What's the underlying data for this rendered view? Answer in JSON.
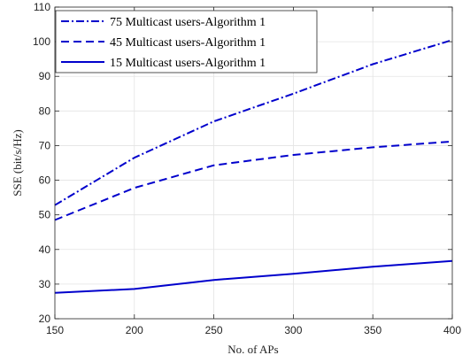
{
  "chart_data": {
    "type": "line",
    "xlabel": "No. of APs",
    "ylabel": "SSE (bit/s/Hz)",
    "x": [
      150,
      200,
      250,
      300,
      350,
      400
    ],
    "xlim": [
      150,
      400
    ],
    "ylim": [
      20,
      110
    ],
    "xticks": [
      150,
      200,
      250,
      300,
      350,
      400
    ],
    "yticks": [
      20,
      30,
      40,
      50,
      60,
      70,
      80,
      90,
      100,
      110
    ],
    "grid": true,
    "legend_position": "top-left",
    "series": [
      {
        "name": "75 Multicast users-Algorithm 1",
        "line_style": "dash-dot",
        "color": "#0000cc",
        "values": [
          52.8,
          66.5,
          77.0,
          85.0,
          93.5,
          100.5
        ]
      },
      {
        "name": "45 Multicast users-Algorithm 1",
        "line_style": "dashed",
        "color": "#0000cc",
        "values": [
          48.5,
          57.8,
          64.3,
          67.3,
          69.5,
          71.2
        ]
      },
      {
        "name": "15 Multicast users-Algorithm 1",
        "line_style": "solid",
        "color": "#0000cc",
        "values": [
          27.5,
          28.6,
          31.2,
          33.0,
          35.0,
          36.7
        ]
      }
    ]
  }
}
